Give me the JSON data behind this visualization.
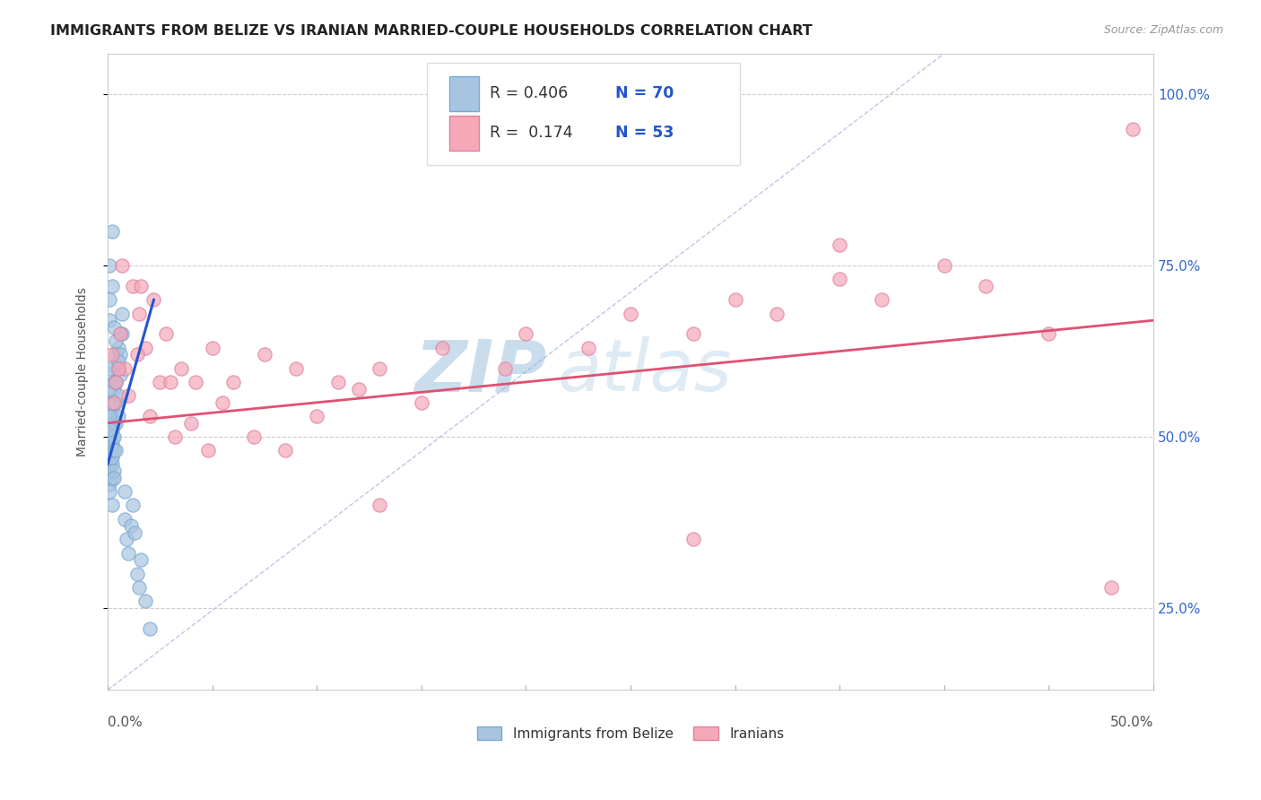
{
  "title": "IMMIGRANTS FROM BELIZE VS IRANIAN MARRIED-COUPLE HOUSEHOLDS CORRELATION CHART",
  "source": "Source: ZipAtlas.com",
  "ylabel": "Married-couple Households",
  "y_ticks": [
    0.25,
    0.5,
    0.75,
    1.0
  ],
  "y_tick_labels": [
    "25.0%",
    "50.0%",
    "75.0%",
    "100.0%"
  ],
  "x_min": 0.0,
  "x_max": 0.5,
  "y_min": 0.13,
  "y_max": 1.06,
  "blue_color": "#a8c4e0",
  "blue_edge_color": "#7aaad0",
  "blue_line_color": "#2255cc",
  "pink_color": "#f5a8b8",
  "pink_edge_color": "#e080a0",
  "pink_line_color": "#e05070",
  "diag_color": "#aabbdd",
  "blue_scatter_x": [
    0.001,
    0.001,
    0.001,
    0.001,
    0.001,
    0.001,
    0.001,
    0.001,
    0.001,
    0.001,
    0.002,
    0.002,
    0.002,
    0.002,
    0.002,
    0.002,
    0.002,
    0.002,
    0.002,
    0.002,
    0.003,
    0.003,
    0.003,
    0.003,
    0.003,
    0.003,
    0.003,
    0.003,
    0.004,
    0.004,
    0.004,
    0.004,
    0.004,
    0.004,
    0.005,
    0.005,
    0.005,
    0.005,
    0.006,
    0.006,
    0.006,
    0.007,
    0.007,
    0.008,
    0.008,
    0.009,
    0.01,
    0.011,
    0.012,
    0.013,
    0.014,
    0.015,
    0.016,
    0.018,
    0.02,
    0.002,
    0.001,
    0.001,
    0.001,
    0.002,
    0.003,
    0.004,
    0.001,
    0.001,
    0.002,
    0.001,
    0.001,
    0.002,
    0.003,
    0.005
  ],
  "blue_scatter_y": [
    0.48,
    0.5,
    0.52,
    0.45,
    0.47,
    0.43,
    0.55,
    0.42,
    0.53,
    0.46,
    0.5,
    0.52,
    0.48,
    0.54,
    0.46,
    0.44,
    0.49,
    0.51,
    0.47,
    0.53,
    0.55,
    0.58,
    0.52,
    0.5,
    0.48,
    0.45,
    0.57,
    0.44,
    0.6,
    0.62,
    0.58,
    0.55,
    0.52,
    0.48,
    0.63,
    0.6,
    0.56,
    0.53,
    0.65,
    0.62,
    0.59,
    0.68,
    0.65,
    0.42,
    0.38,
    0.35,
    0.33,
    0.37,
    0.4,
    0.36,
    0.3,
    0.28,
    0.32,
    0.26,
    0.22,
    0.8,
    0.75,
    0.7,
    0.67,
    0.72,
    0.66,
    0.64,
    0.6,
    0.57,
    0.55,
    0.53,
    0.51,
    0.4,
    0.58,
    0.61
  ],
  "pink_scatter_x": [
    0.002,
    0.004,
    0.006,
    0.008,
    0.012,
    0.015,
    0.018,
    0.022,
    0.028,
    0.035,
    0.042,
    0.05,
    0.06,
    0.075,
    0.09,
    0.11,
    0.13,
    0.16,
    0.2,
    0.25,
    0.3,
    0.35,
    0.4,
    0.45,
    0.48,
    0.003,
    0.005,
    0.01,
    0.014,
    0.02,
    0.025,
    0.032,
    0.04,
    0.055,
    0.07,
    0.085,
    0.1,
    0.12,
    0.15,
    0.19,
    0.23,
    0.28,
    0.32,
    0.37,
    0.42,
    0.007,
    0.016,
    0.03,
    0.048,
    0.13,
    0.28,
    0.49,
    0.35
  ],
  "pink_scatter_y": [
    0.62,
    0.58,
    0.65,
    0.6,
    0.72,
    0.68,
    0.63,
    0.7,
    0.65,
    0.6,
    0.58,
    0.63,
    0.58,
    0.62,
    0.6,
    0.58,
    0.6,
    0.63,
    0.65,
    0.68,
    0.7,
    0.73,
    0.75,
    0.65,
    0.28,
    0.55,
    0.6,
    0.56,
    0.62,
    0.53,
    0.58,
    0.5,
    0.52,
    0.55,
    0.5,
    0.48,
    0.53,
    0.57,
    0.55,
    0.6,
    0.63,
    0.65,
    0.68,
    0.7,
    0.72,
    0.75,
    0.72,
    0.58,
    0.48,
    0.4,
    0.35,
    0.95,
    0.78
  ],
  "blue_line_x": [
    0.0,
    0.022
  ],
  "blue_line_y": [
    0.46,
    0.7
  ],
  "pink_line_x": [
    0.0,
    0.5
  ],
  "pink_line_y": [
    0.52,
    0.67
  ],
  "diag_line_x": [
    0.0,
    0.4
  ],
  "diag_line_y": [
    0.13,
    1.06
  ],
  "bottom_legend_blue": "Immigrants from Belize",
  "bottom_legend_pink": "Iranians",
  "watermark_top": "ZIP",
  "watermark_bottom": "atlas"
}
